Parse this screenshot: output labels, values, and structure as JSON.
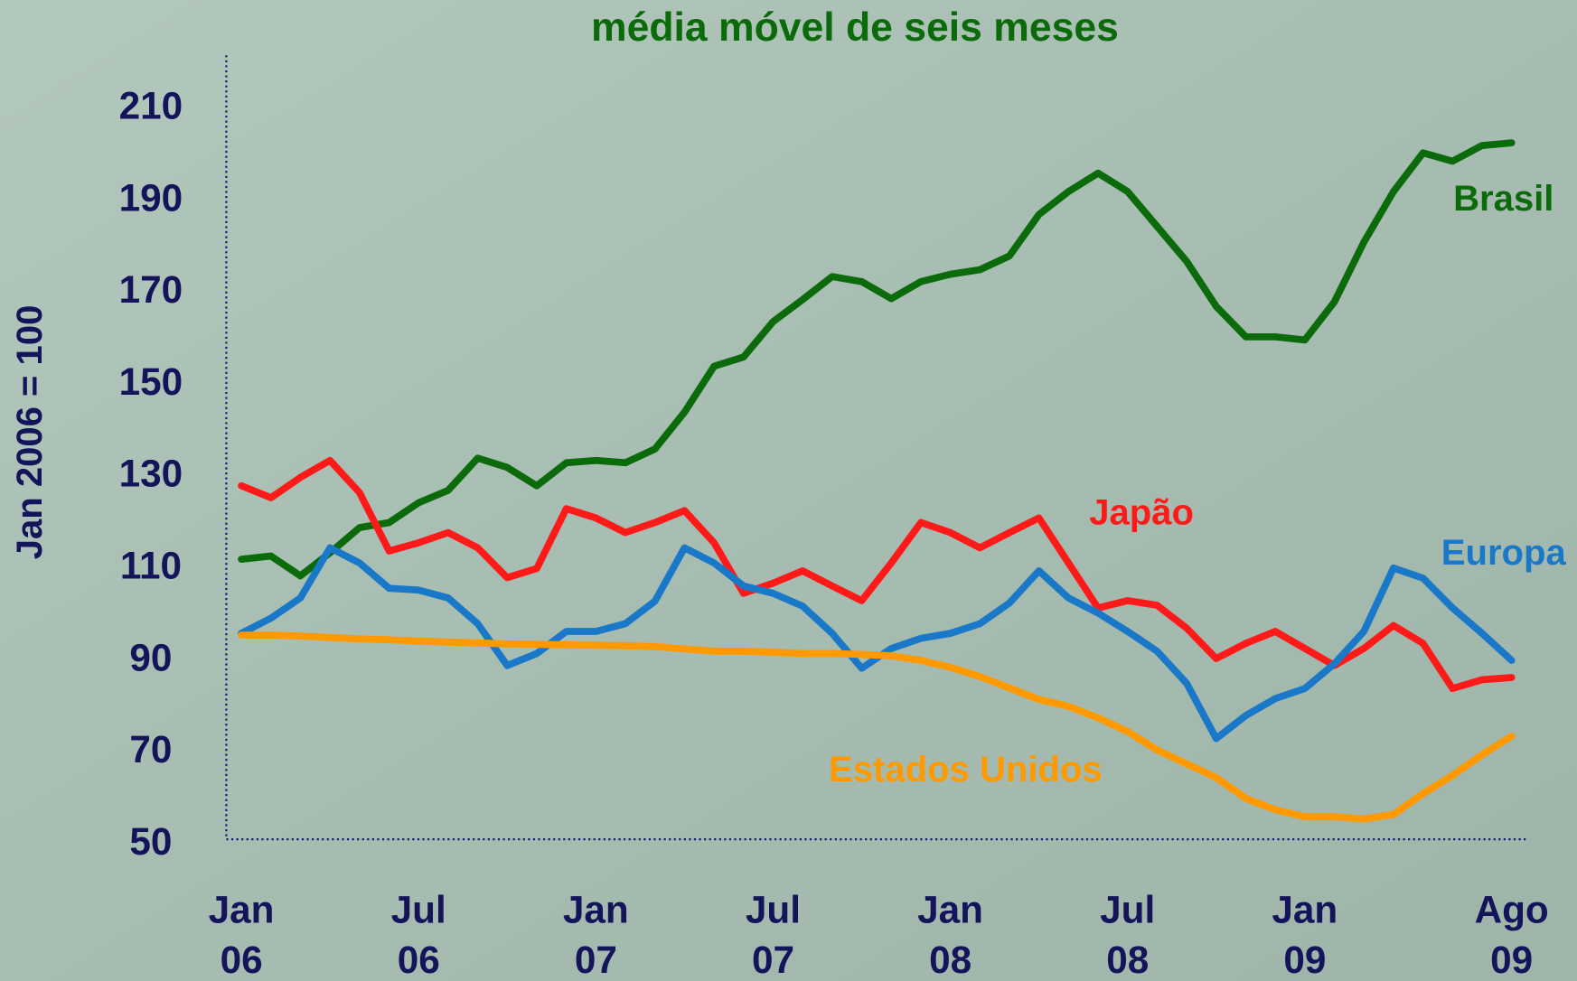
{
  "chart_data": {
    "type": "line",
    "title": "média móvel de seis meses",
    "y_label": "Jan 2006 = 100",
    "categories": [
      "Jan 06",
      null,
      null,
      null,
      null,
      null,
      "Jul 06",
      null,
      null,
      null,
      null,
      null,
      "Jan 07",
      null,
      null,
      null,
      null,
      null,
      "Jul 07",
      null,
      null,
      null,
      null,
      null,
      "Jan 08",
      null,
      null,
      null,
      null,
      null,
      "Jul 08",
      null,
      null,
      null,
      null,
      null,
      "Jan 09",
      null,
      null,
      null,
      null,
      null,
      null,
      "Ago 09"
    ],
    "ylim": [
      50,
      220
    ],
    "yticks": [
      50,
      70,
      90,
      110,
      130,
      150,
      170,
      190,
      210
    ],
    "series": [
      {
        "name": "Brasil",
        "color": "#0b6b0b",
        "values": [
          112,
          112.7,
          108.4,
          113.4,
          118.9,
          120,
          124.3,
          127,
          134,
          132,
          128,
          133,
          133.5,
          133,
          136,
          144,
          154,
          156,
          163.7,
          168.5,
          173.5,
          172.4,
          168.7,
          172.4,
          174,
          175,
          178,
          187,
          192,
          196,
          192,
          184.4,
          176.8,
          167,
          160.4,
          160.4,
          159.7,
          168,
          181,
          192,
          200.4,
          198.6,
          202,
          202.6
        ]
      },
      {
        "name": "Japão",
        "color": "#ff1a1a",
        "values": [
          128,
          125.4,
          129.8,
          133.5,
          126.5,
          113.8,
          115.6,
          117.8,
          114.5,
          108,
          110,
          123,
          121,
          117.8,
          120,
          122.6,
          115.6,
          104.6,
          106.8,
          109.5,
          106.2,
          103,
          111.2,
          120,
          117.8,
          114.5,
          117.8,
          121,
          111.2,
          101.4,
          103,
          102,
          97,
          90.4,
          93.7,
          96.3,
          92.6,
          88.9,
          92.6,
          97.6,
          93.7,
          83.9,
          85.8,
          86.3
        ]
      },
      {
        "name": "Europa",
        "color": "#1a78c8",
        "values": [
          95.9,
          99.2,
          103.6,
          114.5,
          111.2,
          105.7,
          105.3,
          103.6,
          98,
          88.9,
          91.5,
          96.3,
          96.3,
          98,
          102.9,
          114.5,
          111.2,
          106.2,
          104.6,
          101.8,
          95.9,
          88.3,
          92.6,
          94.8,
          95.9,
          98,
          102.5,
          109.5,
          103.6,
          100.3,
          96.3,
          92,
          85,
          73,
          78,
          81.7,
          83.9,
          89.3,
          96.3,
          110.1,
          107.9,
          101.4,
          95.9,
          90
        ]
      },
      {
        "name": "Estados Unidos",
        "color": "#ff9900",
        "values": [
          95.5,
          95.5,
          95.3,
          95,
          94.7,
          94.5,
          94.2,
          94,
          93.8,
          93.6,
          93.5,
          93.4,
          93.3,
          93.2,
          93,
          92.5,
          92,
          92,
          91.8,
          91.5,
          91.5,
          91.3,
          91,
          90,
          88.5,
          86.5,
          84,
          81.5,
          80,
          77.5,
          74.5,
          70.5,
          67.5,
          64.5,
          60,
          57.5,
          56,
          56,
          55.5,
          56.5,
          61,
          65,
          69.5,
          73.5
        ]
      }
    ]
  }
}
